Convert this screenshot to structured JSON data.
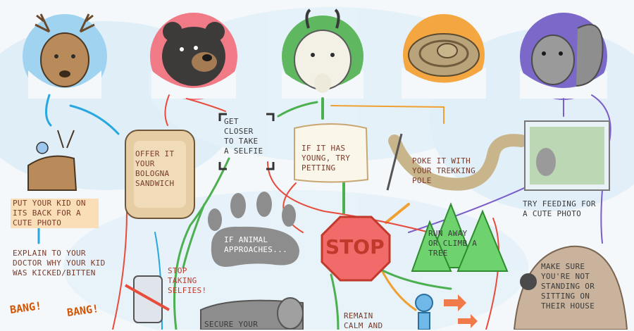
{
  "diagram": {
    "animals": [
      "deer",
      "black bear",
      "mountain goat",
      "rattlesnake",
      "squirrel"
    ],
    "labels": {
      "kid_photo": "PUT YOUR KID ON\nITS BACK FOR A\nCUTE PHOTO",
      "explain_doctor": "EXPLAIN TO YOUR\nDOCTOR WHY YOUR KID\nWAS KICKED/BITTEN",
      "offer_sandwich": "OFFER IT\nYOUR\nBOLOGNA\nSANDWICH",
      "get_closer": "GET\nCLOSER\nTO TAKE\nA SELFIE",
      "try_petting": "IF IT HAS\nYOUNG, TRY\nPETTING",
      "poke": "POKE IT WITH\nYOUR TREKKING\nPOLE",
      "try_feeding": "TRY FEEDING FOR\nA CUTE PHOTO",
      "if_approaches": "IF ANIMAL\nAPPROACHES...",
      "stop": "STOP",
      "run_away": "RUN AWAY\nOR CLIMB A\nTREE",
      "stop_selfies": "STOP\nTAKING\nSELFIES!",
      "make_sure": "MAKE SURE\nYOU'RE NOT\nSTANDING OR\nSITTING ON\nTHEIR HOUSE",
      "remain_calm": "REMAIN\nCALM AND",
      "secure_your": "SECURE YOUR",
      "bang1": "BANG!",
      "bang2": "BANG!"
    }
  }
}
